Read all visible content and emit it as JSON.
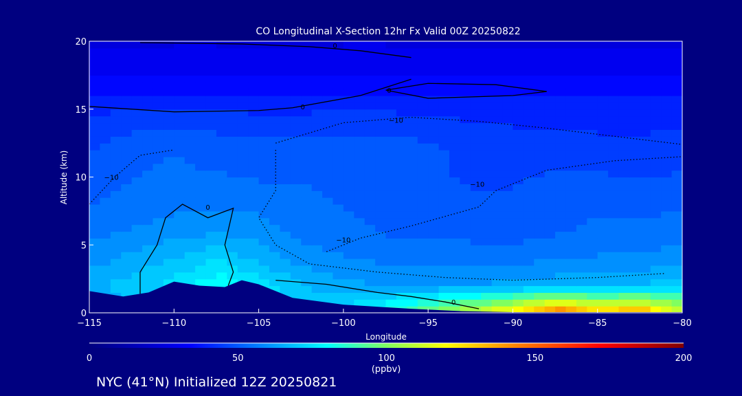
{
  "chart_data": {
    "type": "heatmap",
    "title": "CO Longitudinal X-Section 12hr  Fx Valid 00Z 20250822",
    "xlabel": "Longitude",
    "ylabel": "Altitude (km)",
    "xlim": [
      -115,
      -80
    ],
    "ylim": [
      0,
      20
    ],
    "x_ticks": [
      -115,
      -110,
      -105,
      -100,
      -95,
      -90,
      -85,
      -80
    ],
    "x_tick_labels": [
      "−115",
      "−110",
      "−105",
      "−100",
      "−95",
      "−90",
      "−85",
      "−80"
    ],
    "y_ticks": [
      0,
      5,
      10,
      15,
      20
    ],
    "y_tick_labels": [
      "0",
      "5",
      "10",
      "15",
      "20"
    ],
    "lon": [
      -115,
      -112.5,
      -110,
      -107.5,
      -105,
      -102.5,
      -100,
      -97.5,
      -95,
      -92.5,
      -90,
      -87.5,
      -85,
      -82.5,
      -80
    ],
    "alt": [
      0,
      2,
      4,
      6,
      8,
      10,
      12,
      14,
      16,
      18,
      20
    ],
    "values": [
      [
        62,
        65,
        68,
        75,
        72,
        70,
        75,
        85,
        100,
        112,
        125,
        150,
        132,
        140,
        112
      ],
      [
        66,
        70,
        74,
        82,
        76,
        68,
        64,
        62,
        62,
        63,
        64,
        66,
        66,
        68,
        72
      ],
      [
        60,
        64,
        68,
        72,
        66,
        60,
        58,
        56,
        55,
        55,
        56,
        57,
        58,
        58,
        60
      ],
      [
        56,
        58,
        60,
        62,
        60,
        56,
        54,
        52,
        52,
        51,
        50,
        52,
        54,
        54,
        56
      ],
      [
        52,
        55,
        56,
        57,
        56,
        54,
        52,
        50,
        49,
        48,
        48,
        50,
        51,
        50,
        52
      ],
      [
        50,
        52,
        54,
        53,
        52,
        52,
        50,
        50,
        48,
        47,
        47,
        48,
        48,
        47,
        48
      ],
      [
        47,
        50,
        52,
        50,
        50,
        49,
        49,
        50,
        49,
        46,
        45,
        45,
        45,
        44,
        45
      ],
      [
        44,
        46,
        47,
        46,
        45,
        45,
        46,
        46,
        44,
        43,
        42,
        41,
        41,
        41,
        42
      ],
      [
        38,
        38,
        38,
        38,
        38,
        38,
        38,
        38,
        37,
        37,
        37,
        37,
        37,
        37,
        38
      ],
      [
        30,
        30,
        31,
        31,
        30,
        30,
        31,
        31,
        30,
        30,
        30,
        30,
        30,
        30,
        30
      ],
      [
        27,
        27,
        27,
        27,
        27,
        27,
        27,
        27,
        27,
        27,
        27,
        27,
        27,
        27,
        27
      ]
    ],
    "terrain": [
      [
        -115,
        1.6
      ],
      [
        -113,
        1.2
      ],
      [
        -111.5,
        1.5
      ],
      [
        -110,
        2.3
      ],
      [
        -108.5,
        2.0
      ],
      [
        -107,
        1.9
      ],
      [
        -106,
        2.4
      ],
      [
        -105,
        2.1
      ],
      [
        -103,
        1.1
      ],
      [
        -100,
        0.6
      ],
      [
        -96,
        0.3
      ],
      [
        -93,
        0.12
      ],
      [
        -90,
        0.05
      ],
      [
        -80,
        0.05
      ]
    ],
    "contours": [
      {
        "level": 0,
        "label": "0",
        "dashed": false,
        "label_at": [
          -108,
          7.6
        ],
        "points": [
          [
            -112,
            1.4
          ],
          [
            -112,
            3
          ],
          [
            -111,
            5
          ],
          [
            -110.5,
            7
          ],
          [
            -109.5,
            8
          ],
          [
            -108,
            7
          ],
          [
            -106.5,
            7.7
          ],
          [
            -107,
            5
          ],
          [
            -106.5,
            3
          ],
          [
            -106.8,
            2
          ]
        ]
      },
      {
        "level": 0,
        "label": "0",
        "dashed": false,
        "label_at": [
          -93.5,
          0.6
        ],
        "points": [
          [
            -104,
            2.4
          ],
          [
            -101,
            2.1
          ],
          [
            -98,
            1.5
          ],
          [
            -96,
            1.2
          ],
          [
            -94,
            0.8
          ],
          [
            -92,
            0.3
          ]
        ]
      },
      {
        "level": 0,
        "label": "0",
        "dashed": false,
        "label_at": [
          -102.4,
          15
        ],
        "points": [
          [
            -115,
            15.2
          ],
          [
            -110,
            14.8
          ],
          [
            -105,
            14.9
          ],
          [
            -103,
            15.1
          ],
          [
            -99,
            16
          ],
          [
            -96,
            17.2
          ]
        ]
      },
      {
        "level": 0,
        "label": "0",
        "dashed": false,
        "label_at": [
          -97.3,
          16.2
        ],
        "points": [
          [
            -97.5,
            16.4
          ],
          [
            -95,
            16.9
          ],
          [
            -91,
            16.8
          ],
          [
            -88,
            16.3
          ],
          [
            -90,
            16
          ],
          [
            -95,
            15.8
          ],
          [
            -97.5,
            16.4
          ]
        ]
      },
      {
        "level": 0,
        "label": "0",
        "dashed": false,
        "label_at": [
          -100.5,
          19.5
        ],
        "points": [
          [
            -112,
            19.9
          ],
          [
            -106,
            19.8
          ],
          [
            -102,
            19.6
          ],
          [
            -99,
            19.3
          ],
          [
            -96,
            18.8
          ]
        ]
      },
      {
        "level": -10,
        "label": "−10",
        "dashed": true,
        "label_at": [
          -96.9,
          14
        ],
        "points": [
          [
            -104,
            12
          ],
          [
            -104,
            9
          ],
          [
            -105,
            7
          ],
          [
            -104,
            5
          ],
          [
            -102,
            3.6
          ],
          [
            -98,
            3
          ],
          [
            -94,
            2.6
          ],
          [
            -90,
            2.4
          ],
          [
            -85,
            2.6
          ],
          [
            -81,
            2.9
          ]
        ]
      },
      {
        "level": -10,
        "label": "−10",
        "dashed": true,
        "label_at": [
          -92.1,
          9.3
        ],
        "points": [
          [
            -104,
            12.5
          ],
          [
            -100,
            14
          ],
          [
            -96,
            14.4
          ],
          [
            -92,
            14.1
          ],
          [
            -88,
            13.6
          ],
          [
            -84,
            13
          ],
          [
            -80,
            12.4
          ]
        ]
      },
      {
        "level": -10,
        "label": "−10",
        "dashed": true,
        "label_at": [
          -100,
          5.2
        ],
        "points": [
          [
            -101,
            4.5
          ],
          [
            -99,
            5.5
          ],
          [
            -96,
            6.4
          ],
          [
            -92,
            7.8
          ],
          [
            -91,
            9
          ],
          [
            -88,
            10.5
          ],
          [
            -84,
            11.2
          ],
          [
            -80,
            11.5
          ]
        ]
      },
      {
        "level": -10,
        "label": "−10",
        "dashed": true,
        "label_at": [
          -113.7,
          9.8
        ],
        "points": [
          [
            -115,
            8
          ],
          [
            -113.5,
            10
          ],
          [
            -112,
            11.6
          ],
          [
            -110,
            12
          ]
        ]
      }
    ],
    "colorbar": {
      "ticks": [
        0,
        50,
        100,
        150,
        200
      ],
      "tick_labels": [
        "0",
        "50",
        "100",
        "150",
        "200"
      ],
      "units": "(ppbv)",
      "range": [
        0,
        200
      ],
      "colors": [
        "#000080",
        "#0000ff",
        "#00ffff",
        "#80ff60",
        "#ffff00",
        "#ff8000",
        "#ff0000",
        "#800000"
      ],
      "stops": [
        0,
        0.17,
        0.4,
        0.5,
        0.6,
        0.72,
        0.86,
        1
      ]
    }
  },
  "footer": "NYC (41°N) Initialized 12Z 20250821",
  "colors": {
    "background": "#000080"
  }
}
